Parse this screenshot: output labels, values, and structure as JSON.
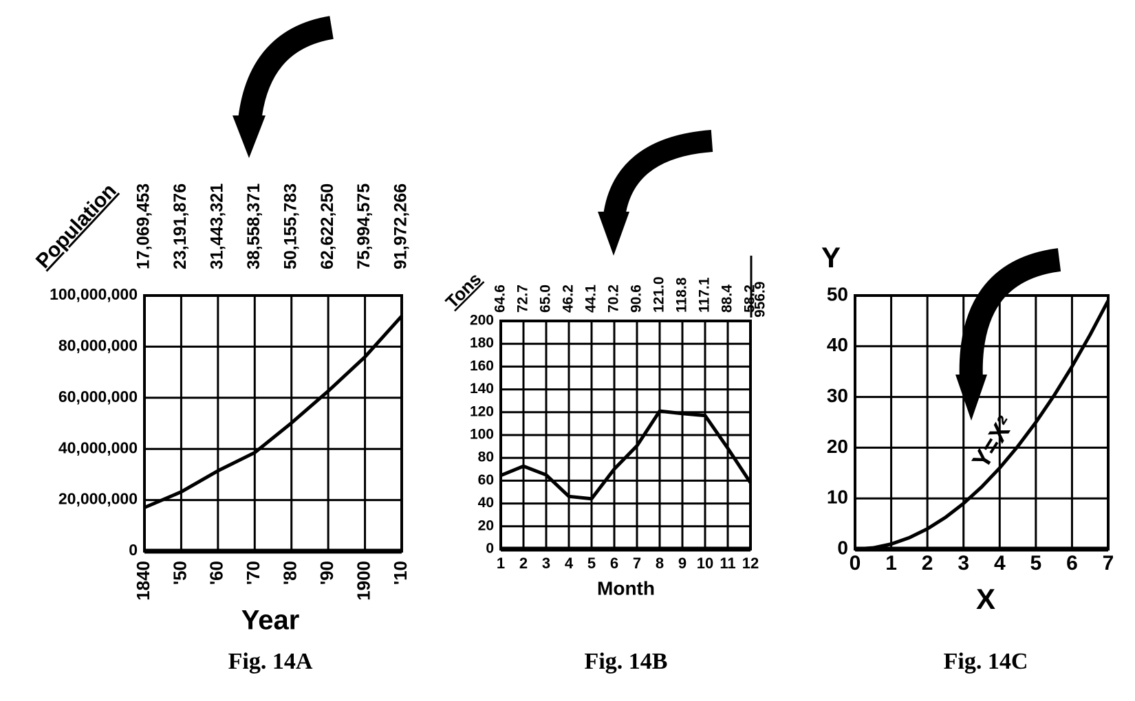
{
  "chart_data": [
    {
      "type": "line",
      "title": "Fig. 14A",
      "xlabel": "Year",
      "value_labels_title": "Population",
      "x": [
        1840,
        1850,
        1860,
        1870,
        1880,
        1890,
        1900,
        1910
      ],
      "values": [
        17069453,
        23191876,
        31443321,
        38558371,
        50155783,
        62622250,
        75994575,
        91972266
      ],
      "value_labels": [
        "17,069,453",
        "23,191,876",
        "31,443,321",
        "38,558,371",
        "50,155,783",
        "62,622,250",
        "75,994,575",
        "91,972,266"
      ],
      "xlim": [
        1840,
        1910
      ],
      "xticks": [
        1840,
        {
          "value": 1850,
          "label": "'50"
        },
        {
          "value": 1860,
          "label": "'60"
        },
        {
          "value": 1870,
          "label": "'70"
        },
        {
          "value": 1880,
          "label": "'80"
        },
        {
          "value": 1890,
          "label": "'90"
        },
        1900,
        {
          "value": 1910,
          "label": "'10"
        }
      ],
      "ylim": [
        0,
        100000000
      ],
      "yticks": [
        0,
        {
          "value": 20000000,
          "label": "20,000,000"
        },
        {
          "value": 40000000,
          "label": "40,000,000"
        },
        {
          "value": 60000000,
          "label": "60,000,000"
        },
        {
          "value": 80000000,
          "label": "80,000,000"
        },
        {
          "value": 100000000,
          "label": "100,000,000"
        }
      ],
      "grid": true,
      "color": "#000000"
    },
    {
      "type": "line",
      "title": "Fig. 14B",
      "xlabel": "Month",
      "value_labels_title": "Tons",
      "x": [
        1,
        2,
        3,
        4,
        5,
        6,
        7,
        8,
        9,
        10,
        11,
        12
      ],
      "values": [
        64.6,
        72.7,
        65.0,
        46.2,
        44.1,
        70.2,
        90.6,
        121.0,
        118.8,
        117.1,
        88.4,
        58.2
      ],
      "value_labels": [
        "64.6",
        "72.7",
        "65.0",
        "46.2",
        "44.1",
        "70.2",
        "90.6",
        "121.0",
        "118.8",
        "117.1",
        "88.4",
        "58.2"
      ],
      "total": 956.9,
      "xlim": [
        1,
        12
      ],
      "xticks": [
        1,
        2,
        3,
        4,
        5,
        6,
        7,
        8,
        9,
        10,
        11,
        12
      ],
      "ylim": [
        0,
        200
      ],
      "yticks": [
        0,
        20,
        40,
        60,
        80,
        100,
        120,
        140,
        160,
        180,
        200
      ],
      "grid": true,
      "color": "#000000"
    },
    {
      "type": "line",
      "title": "Fig. 14C",
      "xlabel": "X",
      "ylabel": "Y",
      "annotation": "Y=X²",
      "x": [
        0,
        0.5,
        1,
        1.5,
        2,
        2.5,
        3,
        3.5,
        4,
        4.5,
        5,
        5.5,
        6,
        6.5,
        7
      ],
      "values": [
        0,
        0.25,
        1,
        2.25,
        4,
        6.25,
        9,
        12.25,
        16,
        20.25,
        25,
        30.25,
        36,
        42.25,
        49
      ],
      "xlim": [
        0,
        7
      ],
      "xticks": [
        0,
        1,
        2,
        3,
        4,
        5,
        6,
        7
      ],
      "ylim": [
        0,
        50
      ],
      "yticks": [
        0,
        10,
        20,
        30,
        40,
        50
      ],
      "grid": true,
      "color": "#000000"
    }
  ]
}
